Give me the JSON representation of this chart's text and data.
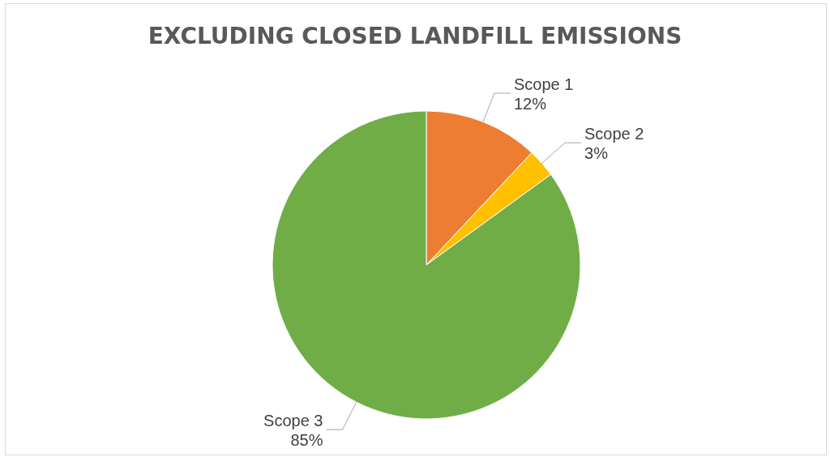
{
  "chart_data": {
    "type": "pie",
    "title": "EXCLUDING CLOSED LANDFILL EMISSIONS",
    "categories": [
      "Scope 1",
      "Scope 2",
      "Scope 3"
    ],
    "values": [
      12,
      3,
      85
    ],
    "colors": [
      "#ed7d31",
      "#ffc000",
      "#70ad47"
    ],
    "value_labels": [
      "12%",
      "3%",
      "85%"
    ],
    "legend": false
  }
}
